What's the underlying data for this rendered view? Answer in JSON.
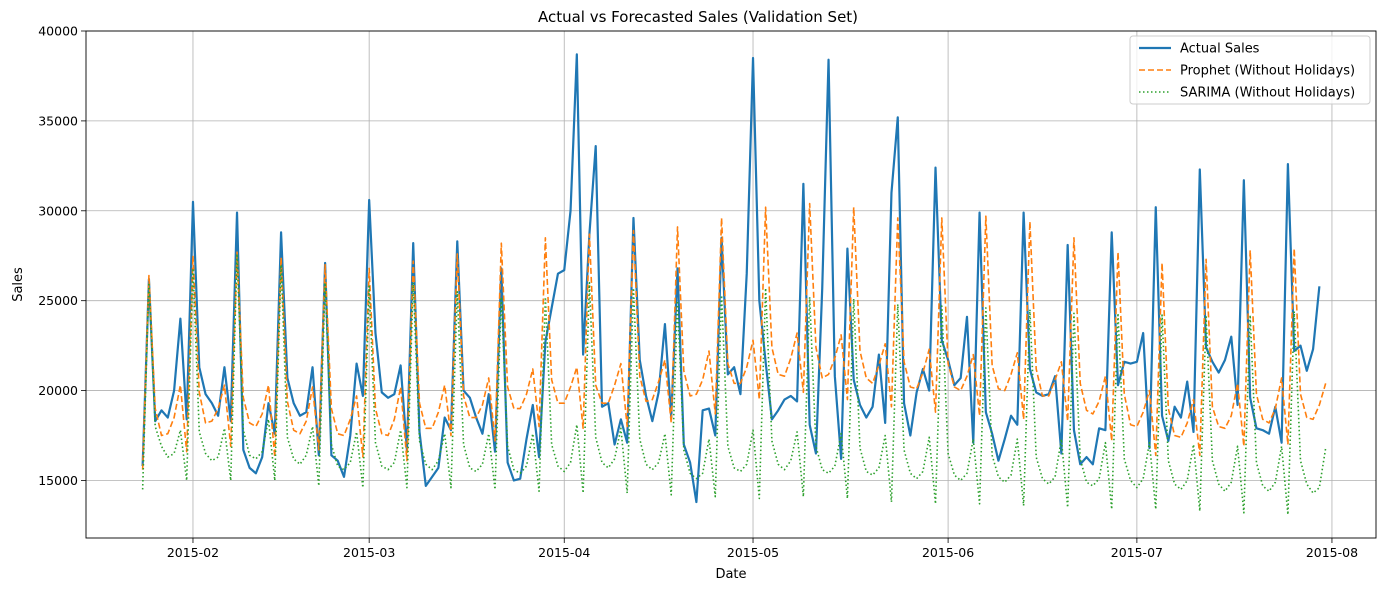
{
  "chart_data": {
    "type": "line",
    "title": "Actual vs Forecasted Sales (Validation Set)",
    "xlabel": "Date",
    "ylabel": "Sales",
    "x_start": "2015-01-24",
    "x_end": "2015-07-31",
    "xlim": [
      "2015-01-15",
      "2015-08-08"
    ],
    "ylim": [
      11800,
      40000
    ],
    "x_ticks": [
      "2015-02",
      "2015-03",
      "2015-04",
      "2015-05",
      "2015-06",
      "2015-07",
      "2015-08"
    ],
    "y_ticks": [
      15000,
      20000,
      25000,
      30000,
      35000,
      40000
    ],
    "grid": true,
    "legend_position": "upper right",
    "series": [
      {
        "name": "Actual Sales",
        "color": "#1f77b4",
        "style": "solid",
        "values": [
          15800,
          26200,
          18300,
          18900,
          18500,
          20000,
          24000,
          18400,
          30500,
          21300,
          19800,
          19300,
          18600,
          21300,
          18300,
          29900,
          16700,
          15700,
          15400,
          16300,
          19300,
          17600,
          28800,
          20700,
          19300,
          18600,
          18800,
          21300,
          16400,
          27100,
          16400,
          16100,
          15200,
          17500,
          21500,
          19700,
          30600,
          23200,
          19900,
          19600,
          19800,
          21400,
          16700,
          28200,
          17700,
          14700,
          15200,
          15700,
          18500,
          17800,
          28300,
          20000,
          19600,
          18500,
          17600,
          19800,
          16600,
          26800,
          16000,
          15000,
          15100,
          17300,
          19200,
          16300,
          22700,
          24600,
          26500,
          26700,
          30000,
          38700,
          22000,
          28700,
          33600,
          19100,
          19300,
          17000,
          18400,
          17100,
          29600,
          21700,
          19700,
          18300,
          19900,
          23700,
          18500,
          26800,
          17000,
          16000,
          13800,
          18900,
          19000,
          17500,
          28500,
          20900,
          21300,
          19800,
          26500,
          38500,
          25000,
          21600,
          18400,
          18900,
          19500,
          19700,
          19400,
          31500,
          18100,
          16500,
          25700,
          38400,
          20800,
          16200,
          27900,
          20600,
          19200,
          18500,
          19100,
          22000,
          18200,
          31000,
          35200,
          19300,
          17500,
          19900,
          21200,
          20000,
          32400,
          22800,
          21700,
          20300,
          20700,
          24100,
          17100,
          29900,
          18800,
          17600,
          16100,
          17300,
          18600,
          18100,
          29900,
          21200,
          19900,
          19700,
          19800,
          20800,
          16500,
          28100,
          17800,
          15900,
          16300,
          15900,
          17900,
          17800,
          28800,
          20300,
          21600,
          21500,
          21600,
          23200,
          16800,
          30200,
          18600,
          17200,
          19100,
          18500,
          20500,
          17700,
          32300,
          22400,
          21600,
          21000,
          21700,
          23000,
          19200,
          31700,
          19600,
          17900,
          17800,
          17600,
          19100,
          17100,
          32600,
          22200,
          22500,
          21100,
          22300,
          25800
        ]
      },
      {
        "name": "Prophet (Without Holidays)",
        "color": "#ff7f0e",
        "style": "dashed",
        "values": [
          15600,
          26400,
          19000,
          17500,
          17600,
          18500,
          20300,
          16600,
          27500,
          19900,
          18200,
          18300,
          19000,
          20300,
          16900,
          27700,
          19600,
          18200,
          18000,
          18700,
          20300,
          16300,
          27400,
          19400,
          17800,
          17600,
          18300,
          20200,
          16700,
          27000,
          19000,
          17600,
          17500,
          18400,
          19700,
          16300,
          26800,
          19000,
          17600,
          17500,
          18400,
          20200,
          16100,
          27200,
          19300,
          17900,
          17900,
          18800,
          20300,
          17500,
          27600,
          19700,
          18500,
          18500,
          19200,
          20700,
          17200,
          28200,
          20200,
          19000,
          19000,
          19800,
          21200,
          18000,
          28500,
          20600,
          19300,
          19300,
          20200,
          21300,
          17900,
          28700,
          20300,
          19300,
          19300,
          20300,
          21500,
          18000,
          28900,
          20800,
          19400,
          19500,
          20500,
          21700,
          18200,
          29100,
          21100,
          19700,
          19800,
          20600,
          22200,
          18700,
          29600,
          21500,
          20400,
          20400,
          21300,
          22800,
          19500,
          30200,
          22400,
          20900,
          20800,
          21800,
          23200,
          19900,
          30400,
          22400,
          20700,
          20900,
          21800,
          23100,
          19500,
          30200,
          22200,
          20700,
          20400,
          21400,
          22600,
          19100,
          29600,
          21600,
          20200,
          20100,
          21000,
          22300,
          18800,
          29600,
          21500,
          20200,
          20000,
          20800,
          22000,
          18600,
          29700,
          21400,
          20100,
          20000,
          20900,
          22100,
          18400,
          29400,
          21200,
          19700,
          19700,
          20600,
          21600,
          18300,
          28500,
          20400,
          18900,
          18700,
          19400,
          20800,
          17200,
          27700,
          19800,
          18100,
          18000,
          18800,
          20000,
          16400,
          27100,
          19000,
          17500,
          17400,
          18200,
          19500,
          16400,
          27300,
          19100,
          18000,
          17900,
          18600,
          20400,
          16900,
          27800,
          19800,
          18400,
          18200,
          19000,
          20700,
          17000,
          27900,
          19800,
          18500,
          18400,
          19200,
          20400
        ]
      },
      {
        "name": "SARIMA (Without Holidays)",
        "color": "#2ca02c",
        "style": "dotted",
        "values": [
          14500,
          26000,
          18000,
          16900,
          16300,
          16500,
          17800,
          15000,
          26800,
          17700,
          16500,
          16100,
          16300,
          17900,
          15000,
          27600,
          17800,
          16400,
          16200,
          16600,
          18400,
          15000,
          27000,
          17400,
          16200,
          15900,
          16400,
          18000,
          14700,
          26000,
          17000,
          15800,
          15600,
          16000,
          17700,
          14600,
          25800,
          17100,
          15800,
          15600,
          16000,
          17800,
          14600,
          26000,
          17200,
          15900,
          15600,
          16100,
          17600,
          14600,
          25500,
          17000,
          15700,
          15500,
          15900,
          17600,
          14500,
          25200,
          16900,
          15600,
          15400,
          15800,
          17600,
          14400,
          25200,
          17000,
          15800,
          15500,
          16000,
          18100,
          14300,
          26000,
          17400,
          16000,
          15700,
          16200,
          17900,
          14300,
          25700,
          17300,
          15900,
          15600,
          16000,
          17600,
          14200,
          25000,
          16700,
          15400,
          15100,
          15400,
          17300,
          14100,
          25300,
          16900,
          15700,
          15500,
          15900,
          17800,
          14000,
          25700,
          17200,
          15900,
          15600,
          16100,
          17700,
          14100,
          25200,
          16900,
          15600,
          15400,
          15800,
          17600,
          14000,
          25100,
          16800,
          15500,
          15300,
          15700,
          17500,
          13800,
          24800,
          16700,
          15400,
          15100,
          15500,
          17400,
          13700,
          24700,
          16500,
          15300,
          15000,
          15400,
          17300,
          13700,
          24600,
          16400,
          15200,
          14900,
          15300,
          17300,
          13600,
          24500,
          16300,
          15100,
          14800,
          15200,
          17300,
          13500,
          24300,
          16200,
          14900,
          14700,
          15100,
          17100,
          13400,
          24300,
          16200,
          15000,
          14600,
          15100,
          17100,
          13400,
          24200,
          16100,
          14800,
          14500,
          15000,
          17000,
          13300,
          24100,
          16100,
          14800,
          14400,
          14900,
          16900,
          13200,
          24200,
          16000,
          14700,
          14400,
          14900,
          16900,
          13100,
          24400,
          16100,
          14800,
          14300,
          14600,
          16800
        ]
      }
    ]
  }
}
